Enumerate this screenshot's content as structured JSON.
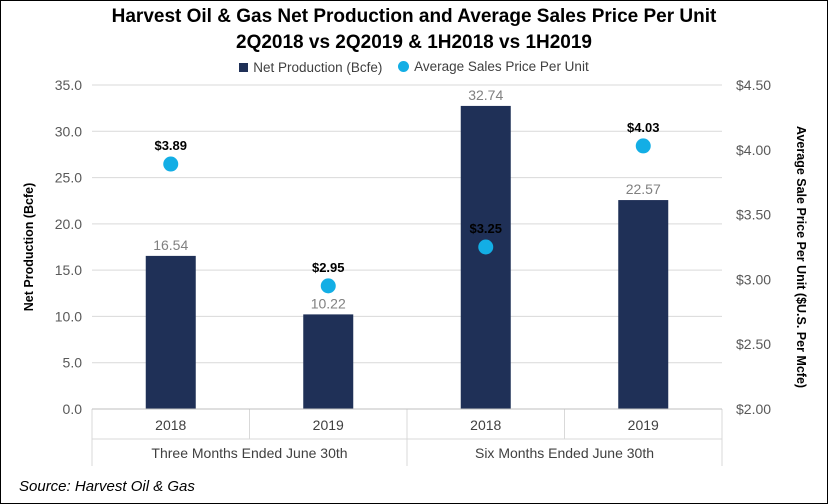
{
  "chart_data": {
    "type": "bar",
    "title": "Harvest Oil & Gas Net Production and Average Sales Price Per Unit",
    "subtitle": "2Q2018 vs 2Q2019 & 1H2018 vs 1H2019",
    "groups": [
      "Three Months Ended June 30th",
      "Six Months Ended June 30th"
    ],
    "categories": [
      "2018",
      "2019",
      "2018",
      "2019"
    ],
    "series": [
      {
        "name": "Net Production (Bcfe)",
        "type": "bar",
        "axis": "left",
        "color": "#1f3057",
        "values": [
          16.54,
          10.22,
          32.74,
          22.57
        ],
        "labels": [
          "16.54",
          "10.22",
          "32.74",
          "22.57"
        ]
      },
      {
        "name": "Average Sales Price Per Unit",
        "type": "scatter",
        "axis": "right",
        "color": "#13aee5",
        "values": [
          3.89,
          2.95,
          3.25,
          4.03
        ],
        "labels": [
          "$3.89",
          "$2.95",
          "$3.25",
          "$4.03"
        ]
      }
    ],
    "ylabel": "Net Production (Bcfe)",
    "ylim": [
      0,
      35
    ],
    "yticks": [
      "0.0",
      "5.0",
      "10.0",
      "15.0",
      "20.0",
      "25.0",
      "30.0",
      "35.0"
    ],
    "y2label": "Average Sale Price Per Unit ($U.S. Per Mcfe)",
    "y2lim": [
      2.0,
      4.5
    ],
    "y2ticks": [
      "$2.00",
      "$2.50",
      "$3.00",
      "$3.50",
      "$4.00",
      "$4.50"
    ],
    "grid": true,
    "legend": "top"
  },
  "source": "Source: Harvest Oil & Gas"
}
